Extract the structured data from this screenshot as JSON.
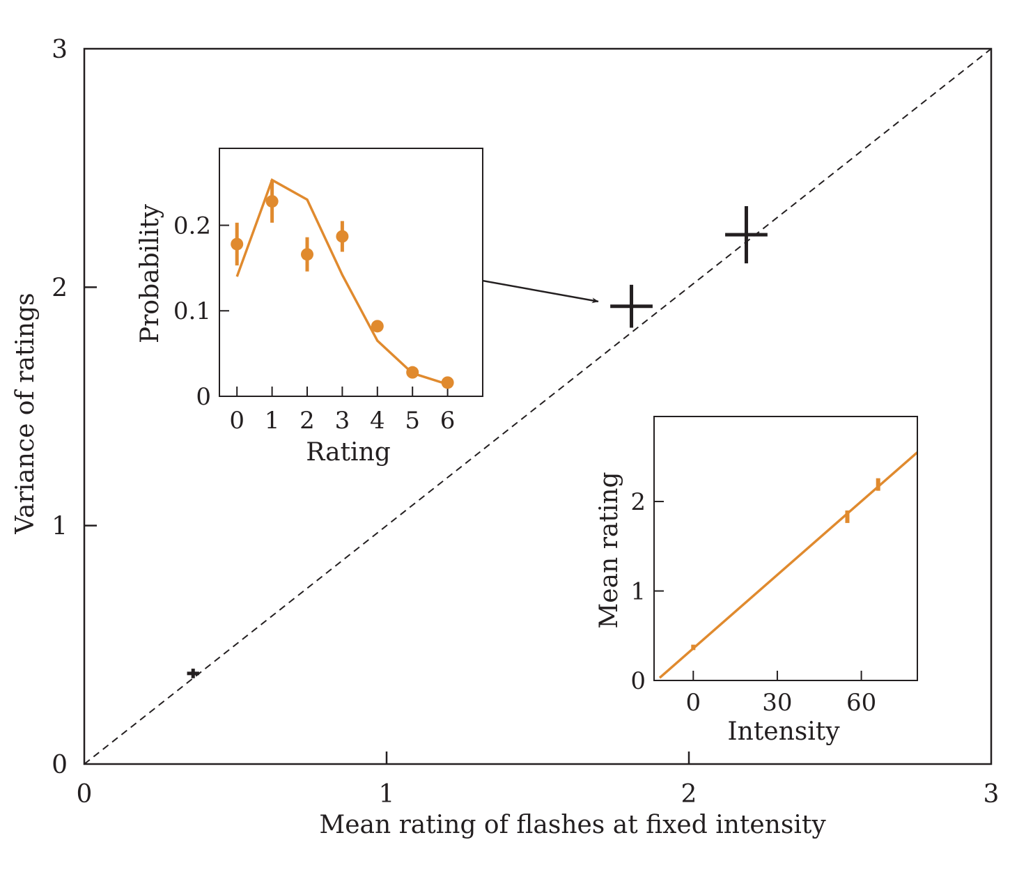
{
  "chart_data": [
    {
      "type": "scatter",
      "title": "",
      "xlabel": "Mean rating of flashes at fixed intensity",
      "ylabel": "Variance of ratings",
      "xlim": [
        0,
        3
      ],
      "ylim": [
        0,
        3
      ],
      "x_ticks": [
        "0",
        "1",
        "2",
        "3"
      ],
      "y_ticks": [
        "0",
        "1",
        "2",
        "3"
      ],
      "grid": false,
      "reference_line": {
        "style": "dashed",
        "from": [
          0,
          0
        ],
        "to": [
          3,
          3
        ]
      },
      "series": [
        {
          "points": [
            {
              "x": 0.36,
              "y": 0.38,
              "x_err": 0.02,
              "y_err": 0.02
            },
            {
              "x": 1.81,
              "y": 1.92,
              "x_err": 0.07,
              "y_err": 0.09
            },
            {
              "x": 2.19,
              "y": 2.22,
              "x_err": 0.07,
              "y_err": 0.12
            }
          ]
        }
      ],
      "annotations": [
        {
          "type": "arrow",
          "from": [
            1.13,
            2.07
          ],
          "to": [
            1.7,
            1.94
          ]
        }
      ]
    },
    {
      "type": "scatter",
      "title": "",
      "xlabel": "Rating",
      "ylabel": "Probability",
      "xlim": [
        -0.5,
        7
      ],
      "ylim": [
        0,
        0.29
      ],
      "x_ticks": [
        "0",
        "1",
        "2",
        "3",
        "4",
        "5",
        "6"
      ],
      "y_ticks": [
        "0",
        "0.1",
        "0.2"
      ],
      "series": [
        {
          "points": [
            {
              "x": 0,
              "y": 0.178,
              "y_err": 0.025
            },
            {
              "x": 1,
              "y": 0.228,
              "y_err": 0.025
            },
            {
              "x": 2,
              "y": 0.166,
              "y_err": 0.02
            },
            {
              "x": 3,
              "y": 0.187,
              "y_err": 0.018
            },
            {
              "x": 4,
              "y": 0.082,
              "y_err": 0.005
            },
            {
              "x": 5,
              "y": 0.028,
              "y_err": 0.005
            },
            {
              "x": 6,
              "y": 0.016,
              "y_err": 0.004
            }
          ]
        },
        {
          "type": "line",
          "x": [
            0,
            1,
            2,
            3,
            4,
            5,
            6
          ],
          "y": [
            0.14,
            0.253,
            0.23,
            0.142,
            0.065,
            0.027,
            0.014
          ]
        }
      ]
    },
    {
      "type": "scatter",
      "title": "",
      "xlabel": "Intensity",
      "ylabel": "Mean rating",
      "xlim": [
        -14,
        80
      ],
      "ylim": [
        0,
        2.95
      ],
      "x_ticks": [
        "0",
        "30",
        "60"
      ],
      "y_ticks": [
        "0",
        "1",
        "2"
      ],
      "series": [
        {
          "points": [
            {
              "x": 0,
              "y": 0.37,
              "y_err": 0.03
            },
            {
              "x": 55,
              "y": 1.83,
              "y_err": 0.07
            },
            {
              "x": 66,
              "y": 2.19,
              "y_err": 0.07
            }
          ]
        },
        {
          "type": "line",
          "x": [
            -12,
            80
          ],
          "y": [
            0.03,
            2.55
          ]
        }
      ]
    }
  ],
  "colors": {
    "ink": "#231f20",
    "accent": "#e08a2e",
    "background": "#ffffff"
  }
}
